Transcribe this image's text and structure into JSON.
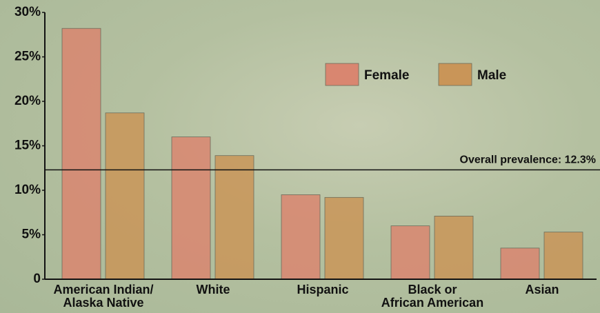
{
  "chart_data": {
    "type": "bar",
    "categories": [
      "American Indian/\nAlaska Native",
      "White",
      "Hispanic",
      "Black or\nAfrican American",
      "Asian"
    ],
    "series": [
      {
        "name": "Female",
        "color": "#d98670",
        "values": [
          28.2,
          16.0,
          9.5,
          6.0,
          3.5
        ]
      },
      {
        "name": "Male",
        "color": "#c99558",
        "values": [
          18.7,
          13.9,
          9.2,
          7.1,
          5.3
        ]
      }
    ],
    "ylim": [
      0,
      30
    ],
    "yticks": [
      0,
      {
        "value": 5,
        "label": "5%"
      },
      {
        "value": 10,
        "label": "10%"
      },
      {
        "value": 15,
        "label": "15%"
      },
      {
        "value": 20,
        "label": "20%"
      },
      {
        "value": 25,
        "label": "25%"
      },
      {
        "value": 30,
        "label": "30%"
      }
    ],
    "reference_line": {
      "value": 12.3,
      "label": "Overall prevalence: 12.3%"
    }
  }
}
